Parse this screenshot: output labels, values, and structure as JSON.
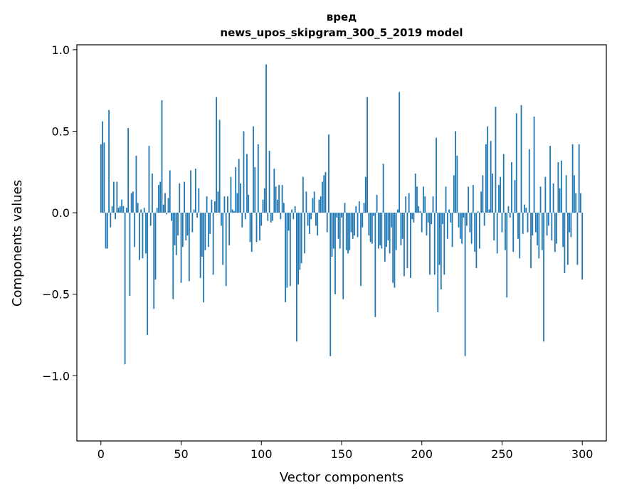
{
  "chart_data": {
    "type": "bar",
    "title_line1": "вред",
    "title_line2": "news_upos_skipgram_300_5_2019 model",
    "xlabel": "Vector components",
    "ylabel": "Components values",
    "xlim": [
      -15,
      315
    ],
    "ylim": [
      -1.4,
      1.03
    ],
    "xticks": [
      0,
      50,
      100,
      150,
      200,
      250,
      300
    ],
    "xtick_labels": [
      "0",
      "50",
      "100",
      "150",
      "200",
      "250",
      "300"
    ],
    "yticks": [
      1.0,
      0.5,
      0.0,
      -0.5,
      -1.0
    ],
    "ytick_labels": [
      "1.0",
      "0.5",
      "0.0",
      "−0.5",
      "−1.0"
    ],
    "bar_color": "#1f77b4",
    "values": [
      0.42,
      0.56,
      0.43,
      -0.22,
      -0.22,
      0.63,
      -0.09,
      0.04,
      0.19,
      -0.04,
      0.19,
      0.03,
      0.04,
      0.08,
      0.04,
      -0.93,
      0.03,
      0.52,
      -0.51,
      0.12,
      0.13,
      -0.21,
      0.35,
      0.06,
      -0.29,
      0.02,
      -0.28,
      0.03,
      -0.25,
      -0.75,
      0.41,
      -0.08,
      0.24,
      -0.59,
      -0.41,
      0.03,
      0.17,
      0.19,
      0.69,
      0.05,
      0.12,
      -0.01,
      0.09,
      0.26,
      -0.05,
      -0.53,
      -0.2,
      -0.26,
      -0.14,
      0.18,
      -0.43,
      -0.21,
      0.19,
      -0.17,
      -0.14,
      -0.42,
      0.26,
      -0.12,
      0.02,
      0.27,
      -0.03,
      0.15,
      -0.4,
      -0.27,
      -0.55,
      -0.23,
      0.1,
      -0.21,
      -0.13,
      0.08,
      -0.38,
      0.07,
      0.71,
      0.13,
      0.57,
      -0.08,
      -0.32,
      0.1,
      -0.45,
      0.1,
      -0.2,
      0.22,
      0.02,
      0.01,
      0.28,
      0.12,
      0.33,
      0.18,
      -0.09,
      0.5,
      -0.04,
      0.36,
      0.11,
      -0.18,
      -0.24,
      0.53,
      0.28,
      -0.18,
      0.42,
      -0.17,
      -0.08,
      0.08,
      0.15,
      0.91,
      -0.05,
      0.38,
      -0.06,
      -0.05,
      0.27,
      0.16,
      0.08,
      0.17,
      -0.04,
      0.17,
      0.06,
      -0.55,
      -0.46,
      -0.11,
      -0.45,
      0.02,
      -0.04,
      0.04,
      -0.79,
      -0.44,
      -0.35,
      -0.31,
      0.22,
      -0.25,
      0.13,
      -0.08,
      -0.13,
      -0.04,
      0.09,
      0.13,
      -0.08,
      -0.14,
      0.08,
      0.1,
      0.19,
      0.23,
      0.25,
      -0.12,
      0.48,
      -0.88,
      -0.27,
      -0.22,
      -0.5,
      -0.03,
      -0.16,
      -0.22,
      -0.03,
      -0.53,
      0.06,
      -0.23,
      -0.25,
      -0.23,
      -0.12,
      -0.16,
      -0.14,
      0.04,
      -0.15,
      0.07,
      -0.45,
      -0.09,
      0.06,
      0.22,
      0.71,
      -0.14,
      -0.18,
      -0.19,
      -0.02,
      -0.64,
      0.11,
      -0.22,
      -0.2,
      -0.22,
      0.3,
      -0.3,
      -0.21,
      -0.17,
      -0.25,
      -0.09,
      -0.43,
      -0.46,
      -0.23,
      0.02,
      0.74,
      -0.2,
      -0.16,
      -0.39,
      0.1,
      -0.34,
      0.12,
      -0.4,
      -0.04,
      -0.06,
      0.24,
      0.16,
      0.04,
      0.01,
      -0.12,
      0.16,
      0.1,
      -0.14,
      -0.06,
      -0.38,
      -0.07,
      0.1,
      -0.38,
      0.46,
      -0.61,
      -0.32,
      -0.47,
      -0.07,
      -0.38,
      0.16,
      -0.16,
      0.02,
      -0.06,
      -0.21,
      0.23,
      0.5,
      0.35,
      -0.09,
      -0.16,
      -0.19,
      -0.03,
      -0.88,
      -0.08,
      0.16,
      -0.12,
      -0.19,
      0.17,
      -0.24,
      -0.34,
      0.01,
      -0.22,
      0.13,
      0.23,
      -0.08,
      0.42,
      0.53,
      0.02,
      0.44,
      0.24,
      -0.17,
      0.65,
      -0.25,
      0.17,
      0.22,
      -0.12,
      0.36,
      -0.23,
      -0.52,
      0.04,
      -0.03,
      0.31,
      -0.24,
      0.2,
      0.61,
      -0.16,
      -0.28,
      0.66,
      -0.13,
      0.05,
      0.03,
      -0.12,
      0.39,
      -0.34,
      -0.14,
      0.59,
      -0.12,
      -0.2,
      -0.28,
      0.16,
      -0.23,
      -0.79,
      0.22,
      -0.14,
      -0.08,
      0.41,
      -0.17,
      0.18,
      -0.24,
      -0.19,
      0.31,
      0.15,
      0.32,
      -0.21,
      -0.37,
      0.23,
      -0.32,
      -0.12,
      -0.15,
      0.42,
      0.23,
      0.12,
      -0.32,
      0.42,
      0.12,
      -0.41
    ]
  }
}
